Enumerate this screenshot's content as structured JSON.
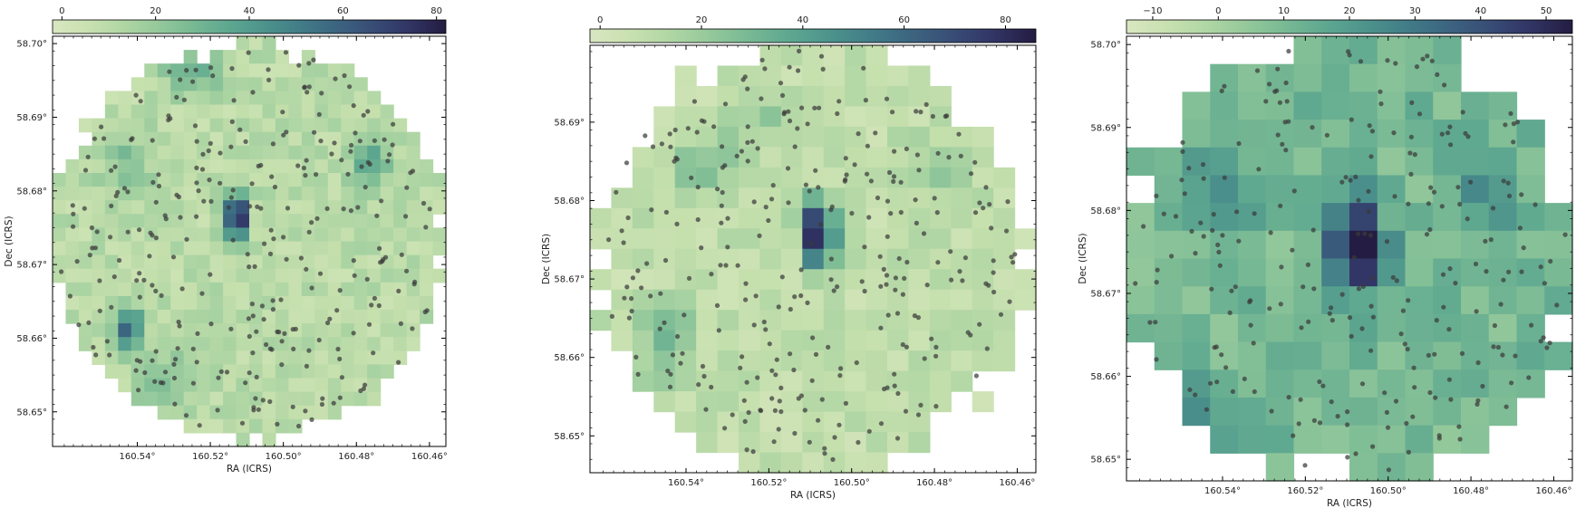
{
  "chart_data": [
    {
      "type": "heatmap",
      "xlabel": "RA (ICRS)",
      "ylabel": "Dec (ICRS)",
      "xlim": [
        160.5632,
        160.4555
      ],
      "ylim": [
        58.6453,
        58.701
      ],
      "xticks": [
        "160.54°",
        "160.52°",
        "160.50°",
        "160.48°",
        "160.46°"
      ],
      "xtick_values": [
        160.54,
        160.52,
        160.5,
        160.48,
        160.46
      ],
      "yticks": [
        "58.65°",
        "58.66°",
        "58.67°",
        "58.68°",
        "58.69°",
        "58.70°"
      ],
      "ytick_values": [
        58.65,
        58.66,
        58.67,
        58.68,
        58.69,
        58.7
      ],
      "colorbar": {
        "range": [
          -2,
          82
        ],
        "ticks": [
          "0",
          "20",
          "40",
          "60",
          "80"
        ],
        "tick_values": [
          0,
          20,
          40,
          60,
          80
        ]
      },
      "grid": {
        "cols": 30,
        "rows": 30
      },
      "footprint_radius_fraction": 0.5,
      "peaks": [
        {
          "ra": 160.5128,
          "dec": 58.6765,
          "value": 82,
          "sigma_ra": 0.0022,
          "sigma_dec": 0.0022
        },
        {
          "ra": 160.5425,
          "dec": 58.661,
          "value": 50,
          "sigma_ra": 0.0028,
          "sigma_dec": 0.0022
        },
        {
          "ra": 160.4765,
          "dec": 58.6835,
          "value": 30,
          "sigma_ra": 0.0035,
          "sigma_dec": 0.0025
        },
        {
          "ra": 160.525,
          "dec": 58.696,
          "value": 25,
          "sigma_ra": 0.005,
          "sigma_dec": 0.002
        },
        {
          "ra": 160.533,
          "dec": 58.6545,
          "value": 18,
          "sigma_ra": 0.005,
          "sigma_dec": 0.0025
        },
        {
          "ra": 160.543,
          "dec": 58.684,
          "value": 15,
          "sigma_ra": 0.005,
          "sigma_dec": 0.003
        }
      ],
      "background_value": 10,
      "point_count": 300
    },
    {
      "type": "heatmap",
      "xlabel": "RA (ICRS)",
      "ylabel": "Dec (ICRS)",
      "xlim": [
        160.5632,
        160.4555
      ],
      "ylim": [
        58.6453,
        58.6998
      ],
      "xticks": [
        "160.54°",
        "160.52°",
        "160.50°",
        "160.48°",
        "160.46°"
      ],
      "xtick_values": [
        160.54,
        160.52,
        160.5,
        160.48,
        160.46
      ],
      "yticks": [
        "58.65°",
        "58.66°",
        "58.67°",
        "58.68°",
        "58.69°"
      ],
      "ytick_values": [
        58.65,
        58.66,
        58.67,
        58.68,
        58.69
      ],
      "colorbar": {
        "range": [
          -2,
          86
        ],
        "ticks": [
          "0",
          "20",
          "40",
          "60",
          "80"
        ],
        "tick_values": [
          0,
          20,
          40,
          60,
          80
        ]
      },
      "grid": {
        "cols": 21,
        "rows": 21
      },
      "footprint_radius_fraction": 0.5,
      "peaks": [
        {
          "ra": 160.5078,
          "dec": 58.6757,
          "value": 86,
          "sigma_ra": 0.0028,
          "sigma_dec": 0.0028
        },
        {
          "ra": 160.545,
          "dec": 58.662,
          "value": 22,
          "sigma_ra": 0.005,
          "sigma_dec": 0.0035
        },
        {
          "ra": 160.535,
          "dec": 58.684,
          "value": 15,
          "sigma_ra": 0.007,
          "sigma_dec": 0.003
        },
        {
          "ra": 160.48,
          "dec": 58.683,
          "value": 12,
          "sigma_ra": 0.005,
          "sigma_dec": 0.003
        },
        {
          "ra": 160.52,
          "dec": 58.69,
          "value": 12,
          "sigma_ra": 0.007,
          "sigma_dec": 0.0025
        }
      ],
      "background_value": 8,
      "point_count": 300
    },
    {
      "type": "heatmap",
      "xlabel": "RA (ICRS)",
      "ylabel": "Dec (ICRS)",
      "xlim": [
        160.5632,
        160.4555
      ],
      "ylim": [
        58.6474,
        58.701
      ],
      "xticks": [
        "160.54°",
        "160.52°",
        "160.50°",
        "160.48°",
        "160.46°"
      ],
      "xtick_values": [
        160.54,
        160.52,
        160.5,
        160.48,
        160.46
      ],
      "yticks": [
        "58.65°",
        "58.66°",
        "58.67°",
        "58.68°",
        "58.69°",
        "58.70°"
      ],
      "ytick_values": [
        58.65,
        58.66,
        58.67,
        58.68,
        58.69,
        58.7
      ],
      "colorbar": {
        "range": [
          -14,
          54
        ],
        "ticks": [
          "−10",
          "0",
          "10",
          "20",
          "30",
          "40",
          "50"
        ],
        "tick_values": [
          -10,
          0,
          10,
          20,
          30,
          40,
          50
        ]
      },
      "grid": {
        "cols": 16,
        "rows": 16
      },
      "footprint_radius_fraction": 0.5,
      "peaks": [
        {
          "ra": 160.5075,
          "dec": 58.6762,
          "value": 56,
          "sigma_ra": 0.0045,
          "sigma_dec": 0.004
        },
        {
          "ra": 160.542,
          "dec": 58.683,
          "value": 12,
          "sigma_ra": 0.007,
          "sigma_dec": 0.004
        },
        {
          "ra": 160.478,
          "dec": 58.682,
          "value": 12,
          "sigma_ra": 0.006,
          "sigma_dec": 0.004
        },
        {
          "ra": 160.545,
          "dec": 58.654,
          "value": 10,
          "sigma_ra": 0.006,
          "sigma_dec": 0.004
        }
      ],
      "background_value": 10,
      "point_count": 250
    }
  ],
  "colormap": [
    "#d9e7c1",
    "#c4dfac",
    "#a3d0a0",
    "#7fbd95",
    "#5ea890",
    "#4a8f8b",
    "#3e7385",
    "#3a567a",
    "#33396a",
    "#241c42"
  ],
  "point_color": "#3a3a3a"
}
